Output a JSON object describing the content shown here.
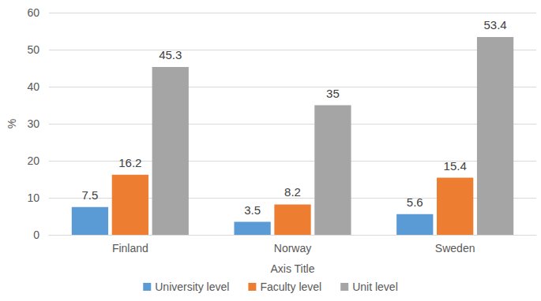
{
  "chart_data": {
    "type": "bar",
    "x_label": "Axis Title",
    "y_label": "%",
    "categories": [
      "Finland",
      "Norway",
      "Sweden"
    ],
    "series": [
      {
        "name": "University level",
        "color": "#5b9bd5",
        "values": [
          7.5,
          3.5,
          5.6
        ]
      },
      {
        "name": "Faculty level",
        "color": "#ed7d31",
        "values": [
          16.2,
          8.2,
          15.4
        ]
      },
      {
        "name": "Unit level",
        "color": "#a5a5a5",
        "values": [
          45.3,
          35,
          53.4
        ]
      }
    ],
    "ylim": [
      0,
      60
    ],
    "yticks": [
      0,
      10,
      20,
      30,
      40,
      50,
      60
    ],
    "grid": true,
    "legend": "bottom",
    "data_labels": true
  }
}
